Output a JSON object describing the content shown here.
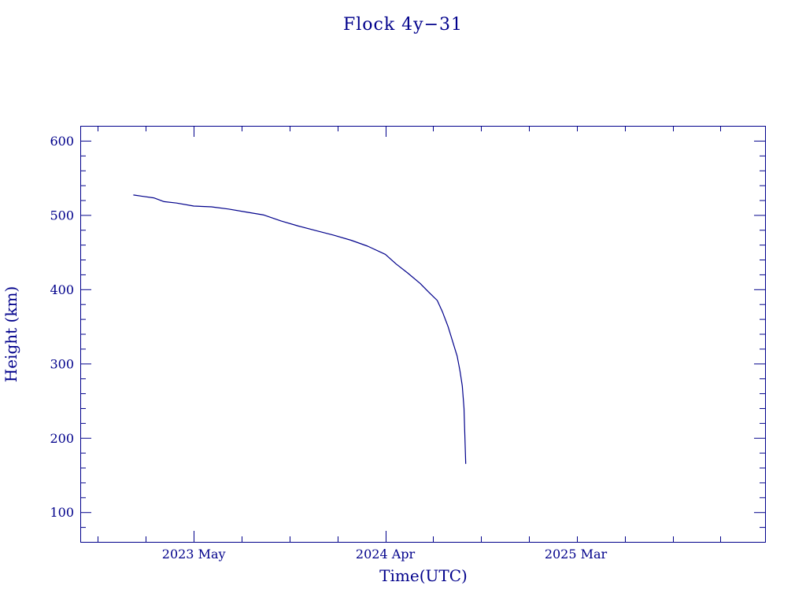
{
  "chart_data": {
    "type": "line",
    "title": "Flock 4y−31",
    "xlabel": "Time(UTC)",
    "ylabel": "Height (km)",
    "xlim": [
      "2022-10-14",
      "2026-01-27"
    ],
    "ylim": [
      60,
      620
    ],
    "x_ticks": [
      {
        "date": "2023-05-01",
        "label": "2023 May"
      },
      {
        "date": "2024-04-01",
        "label": "2024 Apr"
      },
      {
        "date": "2025-03-01",
        "label": "2025 Mar"
      }
    ],
    "y_ticks": [
      100,
      200,
      300,
      400,
      500,
      600
    ],
    "grid": false,
    "series": [
      {
        "color": "#00008b",
        "x": [
          "2023-01-15",
          "2023-02-01",
          "2023-02-20",
          "2023-03-10",
          "2023-04-01",
          "2023-05-01",
          "2023-06-01",
          "2023-07-01",
          "2023-08-01",
          "2023-09-01",
          "2023-10-01",
          "2023-11-01",
          "2023-12-01",
          "2024-01-01",
          "2024-02-01",
          "2024-03-01",
          "2024-04-01",
          "2024-04-20",
          "2024-05-10",
          "2024-06-01",
          "2024-06-15",
          "2024-07-01",
          "2024-07-10",
          "2024-07-20",
          "2024-07-28",
          "2024-08-05",
          "2024-08-10",
          "2024-08-14",
          "2024-08-17",
          "2024-08-20"
        ],
        "y": [
          527,
          525,
          523,
          518,
          516,
          512,
          511,
          508,
          504,
          500,
          492,
          485,
          479,
          473,
          466,
          458,
          447,
          434,
          422,
          408,
          397,
          385,
          370,
          350,
          330,
          310,
          290,
          270,
          240,
          165
        ]
      }
    ]
  }
}
